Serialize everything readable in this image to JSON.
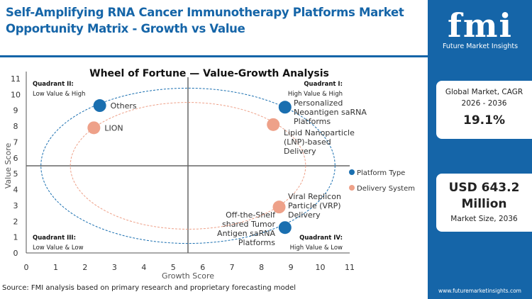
{
  "header": {
    "title": "Self-Amplifying RNA Cancer Immunotherapy Platforms Market Opportunity Matrix - Growth vs Value"
  },
  "chart_data": {
    "type": "scatter",
    "title": "Wheel of Fortune — Value-Growth Analysis",
    "xlabel": "Growth Score",
    "ylabel": "Value Score",
    "xlim": [
      0,
      11
    ],
    "ylim": [
      0,
      11
    ],
    "xticks": [
      "0",
      "1",
      "2",
      "3",
      "4",
      "5",
      "6",
      "7",
      "8",
      "9",
      "10",
      "11"
    ],
    "yticks": [
      "0",
      "1",
      "2",
      "3",
      "4",
      "5",
      "6",
      "7",
      "8",
      "9",
      "10",
      "11"
    ],
    "quadrant_divider": {
      "x": 5.5,
      "y": 5.5
    },
    "quadrants": [
      {
        "title": "Quadrant I:",
        "subtitle": "High Value & High",
        "position": "top-right"
      },
      {
        "title": "Quadrant II:",
        "subtitle": "Low Value & High",
        "position": "top-left"
      },
      {
        "title": "Quadrant III:",
        "subtitle": "Low Value & Low",
        "position": "bottom-left"
      },
      {
        "title": "Quadrant IV:",
        "subtitle": "High Value & Low",
        "position": "bottom-right"
      }
    ],
    "legend_placement": "right",
    "series": [
      {
        "name": "Platform Type",
        "color": "#1a6fb0",
        "ellipse": {
          "cx": 5.5,
          "cy": 5.5,
          "rx": 5,
          "ry": 4.9
        },
        "points": [
          {
            "label": "Others",
            "x": 2.5,
            "y": 9.3
          },
          {
            "label": "Personalized Neoantigen saRNA Platforms",
            "x": 8.8,
            "y": 9.2
          },
          {
            "label": "Off-the-Shelf shared Tumor Antigen saRNA Platforms",
            "x": 8.8,
            "y": 1.6
          }
        ]
      },
      {
        "name": "Delivery System",
        "color": "#eea189",
        "ellipse": {
          "cx": 5.5,
          "cy": 5.5,
          "rx": 4,
          "ry": 4
        },
        "points": [
          {
            "label": "LION",
            "x": 2.3,
            "y": 7.9
          },
          {
            "label": "Lipid Nanoparticle (LNP)-based Delivery",
            "x": 8.4,
            "y": 8.1
          },
          {
            "label": "Viral Replicon Particle (VRP) Delivery",
            "x": 8.6,
            "y": 2.9
          }
        ]
      }
    ]
  },
  "side": {
    "logo": "fmi",
    "logo_sub": "Future Market Insights",
    "cagr_label": "Global Market, CAGR 2026 - 2036",
    "cagr_value": "19.1%",
    "size_value": "USD 643.2 Million",
    "size_label": "Market Size, 2036",
    "website": "www.futuremarketinsights.com"
  },
  "footer": {
    "source": "Source: FMI analysis based on primary research and proprietary forecasting model"
  }
}
